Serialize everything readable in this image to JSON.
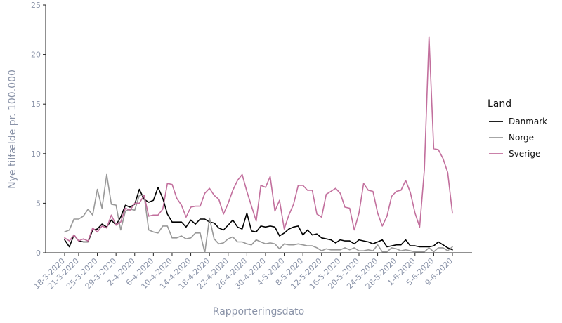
{
  "chart_data": {
    "type": "line",
    "xlabel": "Rapporteringsdato",
    "ylabel": "Nye tilfælde pr. 100.000",
    "ylim": [
      0,
      25
    ],
    "yticks": [
      "0",
      "5",
      "10",
      "15",
      "20",
      "25"
    ],
    "x_tick_labels": [
      "18-3-2020",
      "21-3-2020",
      "25-3-2020",
      "29-3-2020",
      "2-4-2020",
      "6-4-2020",
      "10-4-2020",
      "14-4-2020",
      "18-4-2020",
      "22-4-2020",
      "26-4-2020",
      "30-4-2020",
      "4-5-2020",
      "8-5-2020",
      "12-5-2020",
      "16-5-2020",
      "20-5-2020",
      "24-5-2020",
      "28-5-2020",
      "1-6-2020",
      "5-6-2020",
      "9-6-2020"
    ],
    "x_tick_days": [
      0,
      3,
      7,
      11,
      15,
      19,
      23,
      27,
      31,
      35,
      39,
      43,
      47,
      51,
      55,
      59,
      63,
      67,
      71,
      75,
      79,
      83
    ],
    "x": [
      "18-3-2020",
      "19-3-2020",
      "20-3-2020",
      "21-3-2020",
      "22-3-2020",
      "23-3-2020",
      "24-3-2020",
      "25-3-2020",
      "26-3-2020",
      "27-3-2020",
      "28-3-2020",
      "29-3-2020",
      "30-3-2020",
      "31-3-2020",
      "1-4-2020",
      "2-4-2020",
      "3-4-2020",
      "4-4-2020",
      "5-4-2020",
      "6-4-2020",
      "7-4-2020",
      "8-4-2020",
      "9-4-2020",
      "10-4-2020",
      "11-4-2020",
      "12-4-2020",
      "13-4-2020",
      "14-4-2020",
      "15-4-2020",
      "16-4-2020",
      "17-4-2020",
      "18-4-2020",
      "19-4-2020",
      "20-4-2020",
      "21-4-2020",
      "22-4-2020",
      "23-4-2020",
      "24-4-2020",
      "25-4-2020",
      "26-4-2020",
      "27-4-2020",
      "28-4-2020",
      "29-4-2020",
      "30-4-2020",
      "1-5-2020",
      "2-5-2020",
      "3-5-2020",
      "4-5-2020",
      "5-5-2020",
      "6-5-2020",
      "7-5-2020",
      "8-5-2020",
      "9-5-2020",
      "10-5-2020",
      "11-5-2020",
      "12-5-2020",
      "13-5-2020",
      "14-5-2020",
      "15-5-2020",
      "16-5-2020",
      "17-5-2020",
      "18-5-2020",
      "19-5-2020",
      "20-5-2020",
      "21-5-2020",
      "22-5-2020",
      "23-5-2020",
      "24-5-2020",
      "25-5-2020",
      "26-5-2020",
      "27-5-2020",
      "28-5-2020",
      "29-5-2020",
      "30-5-2020",
      "31-5-2020",
      "1-6-2020",
      "2-6-2020",
      "3-6-2020",
      "4-6-2020",
      "5-6-2020",
      "6-6-2020",
      "7-6-2020",
      "8-6-2020",
      "9-6-2020"
    ],
    "series": [
      {
        "name": "Danmark",
        "color": "#000000",
        "values": [
          1.3,
          0.6,
          1.8,
          1.2,
          1.1,
          1.1,
          2.3,
          2.4,
          2.9,
          2.6,
          3.3,
          2.8,
          3.6,
          4.8,
          4.6,
          4.9,
          6.4,
          5.4,
          5.1,
          5.3,
          6.6,
          5.5,
          3.9,
          3.1,
          3.1,
          3.1,
          2.6,
          3.3,
          2.9,
          3.4,
          3.4,
          3.1,
          3.0,
          2.5,
          2.3,
          2.8,
          3.3,
          2.6,
          2.4,
          4.0,
          2.2,
          2.1,
          2.7,
          2.6,
          2.7,
          2.6,
          1.7,
          2.0,
          2.4,
          2.6,
          2.7,
          1.8,
          2.3,
          1.8,
          1.9,
          1.5,
          1.4,
          1.3,
          1.0,
          1.3,
          1.2,
          1.2,
          0.9,
          1.3,
          1.2,
          1.1,
          0.9,
          1.1,
          1.3,
          0.6,
          0.7,
          0.8,
          0.8,
          1.3,
          0.7,
          0.7,
          0.6,
          0.6,
          0.6,
          0.7,
          1.1,
          0.8,
          0.5,
          0.3
        ]
      },
      {
        "name": "Norge",
        "color": "#999999",
        "values": [
          2.1,
          2.3,
          3.4,
          3.4,
          3.7,
          4.4,
          3.8,
          6.4,
          4.5,
          7.9,
          4.9,
          4.8,
          2.3,
          4.2,
          4.4,
          4.3,
          5.8,
          5.8,
          2.3,
          2.1,
          2.0,
          2.7,
          2.7,
          1.5,
          1.5,
          1.7,
          1.4,
          1.5,
          2.0,
          2.0,
          0.0,
          3.5,
          1.4,
          0.9,
          1.0,
          1.4,
          1.6,
          1.1,
          1.1,
          0.9,
          0.8,
          1.3,
          1.1,
          0.9,
          1.0,
          0.9,
          0.4,
          0.9,
          0.8,
          0.8,
          0.9,
          0.8,
          0.7,
          0.7,
          0.5,
          0.2,
          0.4,
          0.3,
          0.3,
          0.3,
          0.5,
          0.3,
          0.5,
          0.2,
          0.2,
          0.3,
          0.2,
          0.8,
          0.1,
          0.1,
          0.5,
          0.4,
          0.2,
          0.3,
          0.2,
          0.1,
          0.1,
          0.1,
          0.5,
          0.1,
          0.5,
          0.5,
          0.2,
          0.6
        ]
      },
      {
        "name": "Sverige",
        "color": "#c26f9d",
        "values": [
          1.5,
          1.2,
          1.8,
          1.2,
          1.4,
          1.2,
          2.5,
          2.1,
          2.7,
          2.5,
          3.8,
          2.8,
          3.1,
          4.5,
          4.3,
          5.0,
          5.0,
          5.8,
          3.7,
          3.8,
          3.8,
          4.4,
          7.0,
          6.9,
          5.5,
          4.8,
          3.6,
          4.6,
          4.7,
          4.7,
          6.0,
          6.5,
          5.8,
          5.4,
          3.9,
          5.0,
          6.3,
          7.3,
          7.9,
          6.2,
          4.7,
          3.2,
          6.8,
          6.6,
          7.7,
          4.2,
          5.3,
          2.4,
          3.8,
          4.9,
          6.8,
          6.8,
          6.3,
          6.3,
          3.9,
          3.6,
          5.9,
          6.2,
          6.5,
          6.0,
          4.6,
          4.5,
          2.3,
          4.0,
          7.0,
          6.3,
          6.2,
          4.0,
          2.7,
          3.7,
          5.7,
          6.2,
          6.3,
          7.3,
          6.1,
          4.0,
          2.6,
          8.4,
          21.8,
          10.5,
          10.4,
          9.5,
          8.1,
          4.0
        ]
      }
    ],
    "legend": {
      "title": "Land",
      "placement": "right",
      "entries": [
        "Danmark",
        "Norge",
        "Sverige"
      ]
    },
    "grid": false
  }
}
